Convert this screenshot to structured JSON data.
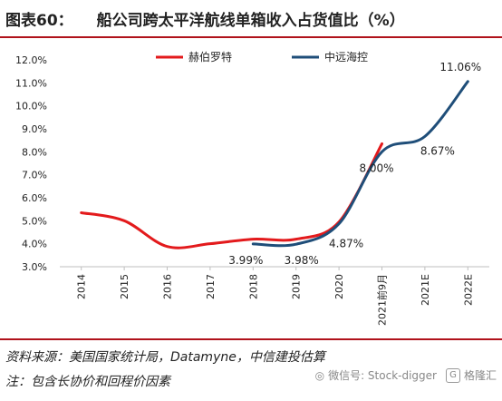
{
  "header": {
    "figure_number": "图表60：",
    "title": "船公司跨太平洋航线单箱收入占货值比（%）"
  },
  "chart_data": {
    "type": "line",
    "categories": [
      "2014",
      "2015",
      "2016",
      "2017",
      "2018",
      "2019",
      "2020",
      "2021前9月",
      "2021E",
      "2022E"
    ],
    "y_tick_labels": [
      "3.0%",
      "4.0%",
      "5.0%",
      "6.0%",
      "7.0%",
      "8.0%",
      "9.0%",
      "10.0%",
      "11.0%",
      "12.0%"
    ],
    "ylim": [
      3.0,
      12.0
    ],
    "legend_position": "top",
    "series": [
      {
        "name": "赫伯罗特",
        "color": "#e31a1c",
        "values": [
          5.35,
          5.0,
          3.88,
          4.0,
          4.2,
          4.2,
          4.95,
          8.35,
          null,
          null
        ]
      },
      {
        "name": "中远海控",
        "color": "#1f4e79",
        "values": [
          null,
          null,
          null,
          null,
          3.99,
          3.98,
          4.87,
          8.0,
          8.67,
          11.06
        ]
      }
    ],
    "data_labels": [
      {
        "category": "2018",
        "value": 3.99,
        "text": "3.99%"
      },
      {
        "category": "2019",
        "value": 3.98,
        "text": "3.98%"
      },
      {
        "category": "2020",
        "value": 4.87,
        "text": "4.87%"
      },
      {
        "category": "2021前9月",
        "value": 8.0,
        "text": "8.00%"
      },
      {
        "category": "2021E",
        "value": 8.67,
        "text": "8.67%"
      },
      {
        "category": "2022E",
        "value": 11.06,
        "text": "11.06%"
      }
    ]
  },
  "footer": {
    "source": "资料来源：美国国家统计局，Datamyne，中信建投估算",
    "note": "注：包含长协价和回程价因素",
    "watermark": "微信号: Stock-digger",
    "watermark_brand": "格隆汇"
  }
}
